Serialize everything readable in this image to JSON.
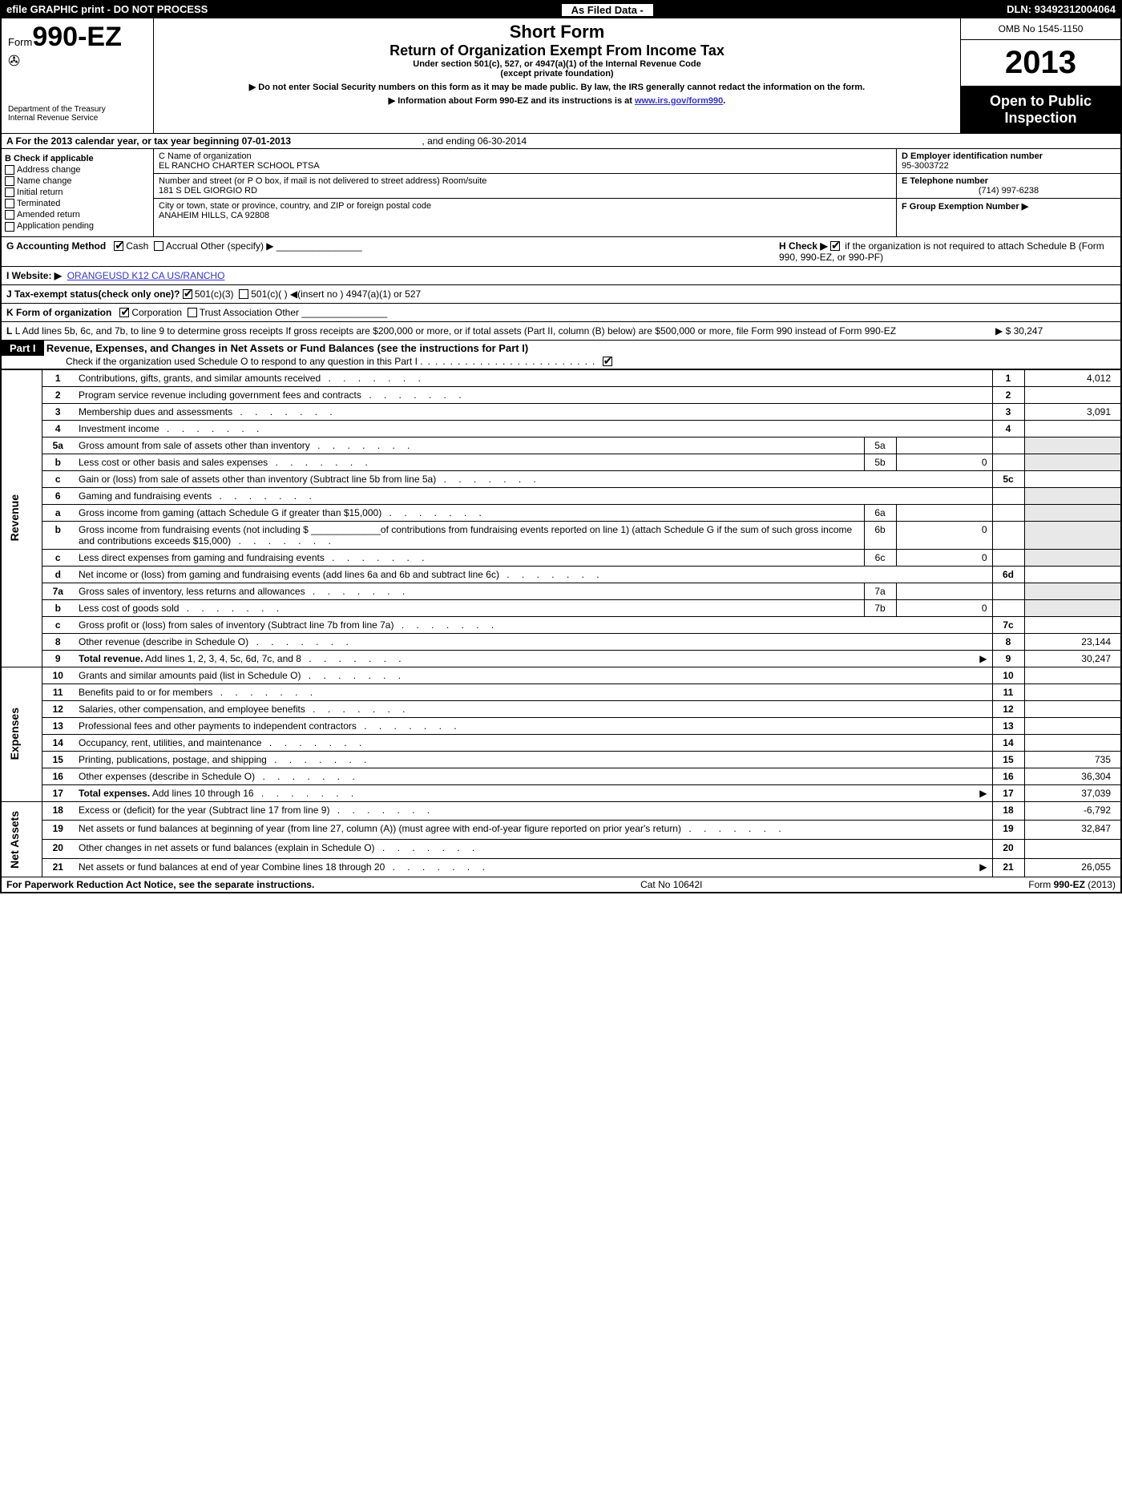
{
  "topbar": {
    "left": "efile GRAPHIC print - DO NOT PROCESS",
    "center": "As Filed Data -",
    "dln": "DLN: 93492312004064"
  },
  "header": {
    "form_prefix": "Form",
    "form_number": "990-EZ",
    "dept1": "Department of the Treasury",
    "dept2": "Internal Revenue Service",
    "title": "Short Form",
    "subtitle": "Return of Organization Exempt From Income Tax",
    "under": "Under section 501(c), 527, or 4947(a)(1) of the Internal Revenue Code",
    "except": "(except private foundation)",
    "note1": "▶ Do not enter Social Security numbers on this form as it may be made public. By law, the IRS generally cannot redact the information on the form.",
    "note2": "▶ Information about Form 990-EZ and its instructions is at ",
    "note2_link": "www.irs.gov/form990",
    "omb": "OMB No  1545-1150",
    "year": "2013",
    "open1": "Open to Public",
    "open2": "Inspection"
  },
  "rowA": {
    "text": "A  For the 2013 calendar year, or tax year beginning 07-01-2013",
    "end": ", and ending 06-30-2014"
  },
  "colB": {
    "title": "B  Check if applicable",
    "items": [
      "Address change",
      "Name change",
      "Initial return",
      "Terminated",
      "Amended return",
      "Application pending"
    ]
  },
  "colC": {
    "label1": "C Name of organization",
    "name": "EL RANCHO CHARTER SCHOOL PTSA",
    "label2": "Number and street (or P  O  box, if mail is not delivered to street address) Room/suite",
    "street": "181 S DEL GIORGIO RD",
    "label3": "City or town, state or province, country, and ZIP or foreign postal code",
    "city": "ANAHEIM HILLS, CA  92808"
  },
  "colD": {
    "label_d": "D Employer identification number",
    "ein": "95-3003722",
    "label_e": "E Telephone number",
    "phone": "(714) 997-6238",
    "label_f": "F Group Exemption Number   ▶"
  },
  "lines_gh": {
    "g": "G Accounting Method",
    "cash": "Cash",
    "accrual": "Accrual   Other (specify) ▶",
    "h": "H  Check ▶",
    "h_text": "if the organization is not required to attach Schedule B (Form 990, 990-EZ, or 990-PF)",
    "i": "I Website: ▶",
    "i_link": "ORANGEUSD K12 CA US/RANCHO",
    "j": "J Tax-exempt status(check only one)?",
    "j_501c3": "501(c)(3)",
    "j_rest": "501(c)(  ) ◀(insert no )    4947(a)(1) or    527",
    "k": "K Form of organization",
    "k_corp": "Corporation",
    "k_rest": "Trust    Association    Other",
    "l": "L Add lines 5b, 6c, and 7b, to line 9 to determine gross receipts  If gross receipts are $200,000 or more, or if total assets (Part II, column (B) below) are $500,000 or more, file Form 990 instead of Form 990-EZ",
    "l_amt": "▶ $ 30,247"
  },
  "part1": {
    "label": "Part I",
    "title": "Revenue, Expenses, and Changes in Net Assets or Fund Balances (see the instructions for Part I)",
    "check": "Check if the organization used Schedule O to respond to any question in this Part I"
  },
  "sections": {
    "revenue": "Revenue",
    "expenses": "Expenses",
    "netassets": "Net Assets"
  },
  "rows": [
    {
      "n": "1",
      "d": "Contributions, gifts, grants, and similar amounts received",
      "b": "1",
      "a": "4,012"
    },
    {
      "n": "2",
      "d": "Program service revenue including government fees and contracts",
      "b": "2",
      "a": ""
    },
    {
      "n": "3",
      "d": "Membership dues and assessments",
      "b": "3",
      "a": "3,091"
    },
    {
      "n": "4",
      "d": "Investment income",
      "b": "4",
      "a": ""
    },
    {
      "n": "5a",
      "d": "Gross amount from sale of assets other than inventory",
      "ib": "5a",
      "ia": ""
    },
    {
      "n": "b",
      "d": "Less  cost or other basis and sales expenses",
      "ib": "5b",
      "ia": "0"
    },
    {
      "n": "c",
      "d": "Gain or (loss) from sale of assets other than inventory (Subtract line 5b from line 5a)",
      "b": "5c",
      "a": ""
    },
    {
      "n": "6",
      "d": "Gaming and fundraising events"
    },
    {
      "n": "a",
      "d": "Gross income from gaming (attach Schedule G if greater than $15,000)",
      "ib": "6a",
      "ia": ""
    },
    {
      "n": "b",
      "d": "Gross income from fundraising events (not including $ _____________of contributions from fundraising events reported on line 1) (attach Schedule G if the sum of such gross income and contributions exceeds $15,000)",
      "ib": "6b",
      "ia": "0"
    },
    {
      "n": "c",
      "d": "Less  direct expenses from gaming and fundraising events",
      "ib": "6c",
      "ia": "0"
    },
    {
      "n": "d",
      "d": "Net income or (loss) from gaming and fundraising events (add lines 6a and 6b and subtract line 6c)",
      "b": "6d",
      "a": ""
    },
    {
      "n": "7a",
      "d": "Gross sales of inventory, less returns and allowances",
      "ib": "7a",
      "ia": ""
    },
    {
      "n": "b",
      "d": "Less  cost of goods sold",
      "ib": "7b",
      "ia": "0"
    },
    {
      "n": "c",
      "d": "Gross profit or (loss) from sales of inventory (Subtract line 7b from line 7a)",
      "b": "7c",
      "a": ""
    },
    {
      "n": "8",
      "d": "Other revenue (describe in Schedule O)",
      "b": "8",
      "a": "23,144"
    },
    {
      "n": "9",
      "d": "Total revenue. Add lines 1, 2, 3, 4, 5c, 6d, 7c, and 8",
      "b": "9",
      "a": "30,247",
      "bold": true,
      "arrow": true
    },
    {
      "n": "10",
      "d": "Grants and similar amounts paid (list in Schedule O)",
      "b": "10",
      "a": ""
    },
    {
      "n": "11",
      "d": "Benefits paid to or for members",
      "b": "11",
      "a": ""
    },
    {
      "n": "12",
      "d": "Salaries, other compensation, and employee benefits",
      "b": "12",
      "a": ""
    },
    {
      "n": "13",
      "d": "Professional fees and other payments to independent contractors",
      "b": "13",
      "a": ""
    },
    {
      "n": "14",
      "d": "Occupancy, rent, utilities, and maintenance",
      "b": "14",
      "a": ""
    },
    {
      "n": "15",
      "d": "Printing, publications, postage, and shipping",
      "b": "15",
      "a": "735"
    },
    {
      "n": "16",
      "d": "Other expenses (describe in Schedule O)",
      "b": "16",
      "a": "36,304"
    },
    {
      "n": "17",
      "d": "Total expenses. Add lines 10 through 16",
      "b": "17",
      "a": "37,039",
      "bold": true,
      "arrow": true
    },
    {
      "n": "18",
      "d": "Excess or (deficit) for the year (Subtract line 17 from line 9)",
      "b": "18",
      "a": "-6,792"
    },
    {
      "n": "19",
      "d": "Net assets or fund balances at beginning of year (from line 27, column (A)) (must agree with end-of-year figure reported on prior year's return)",
      "b": "19",
      "a": "32,847"
    },
    {
      "n": "20",
      "d": "Other changes in net assets or fund balances (explain in Schedule O)",
      "b": "20",
      "a": ""
    },
    {
      "n": "21",
      "d": "Net assets or fund balances at end of year  Combine lines 18 through 20",
      "b": "21",
      "a": "26,055",
      "arrow": true
    }
  ],
  "footer": {
    "left": "For Paperwork Reduction Act Notice, see the separate instructions.",
    "center": "Cat  No  10642I",
    "right": "Form 990-EZ (2013)"
  }
}
